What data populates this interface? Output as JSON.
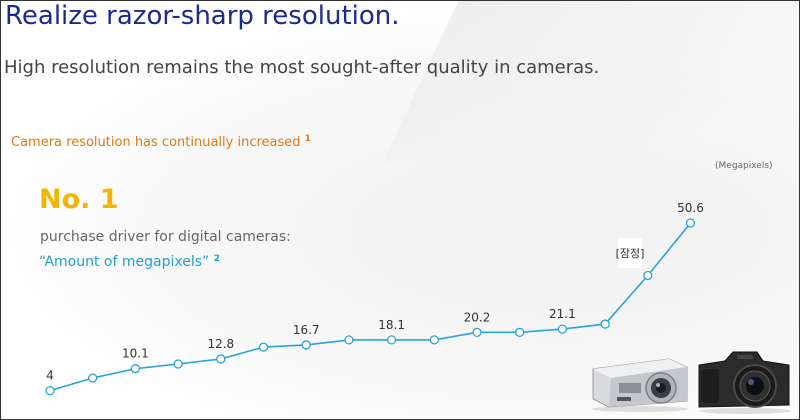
{
  "header": {
    "title": "Realize razor-sharp resolution.",
    "subtitle": "High resolution remains the most sought-after quality in cameras."
  },
  "caption": {
    "text": "Camera resolution has continually increased",
    "note": "1"
  },
  "unit_label": "(Megapixels)",
  "highlight": {
    "rank": "No. 1",
    "line1": "purchase driver for digital cameras:",
    "line2": "“Amount of megapixels”",
    "note": "2"
  },
  "chart_data": {
    "type": "line",
    "ylabel": "(Megapixels)",
    "values": [
      4,
      7.5,
      10.1,
      11.4,
      12.8,
      16.1,
      16.7,
      18.1,
      18.1,
      18.1,
      20.2,
      20.2,
      21.1,
      22.5,
      36,
      50.6
    ],
    "labels": [
      "4",
      "",
      "10.1",
      "",
      "12.8",
      "",
      "16.7",
      "",
      "18.1",
      "",
      "20.2",
      "",
      "21.1",
      "",
      "",
      "50.6"
    ],
    "ylim": [
      0,
      55
    ],
    "grid": false,
    "color": "#29a3d6",
    "annotation": "[잠정]"
  }
}
